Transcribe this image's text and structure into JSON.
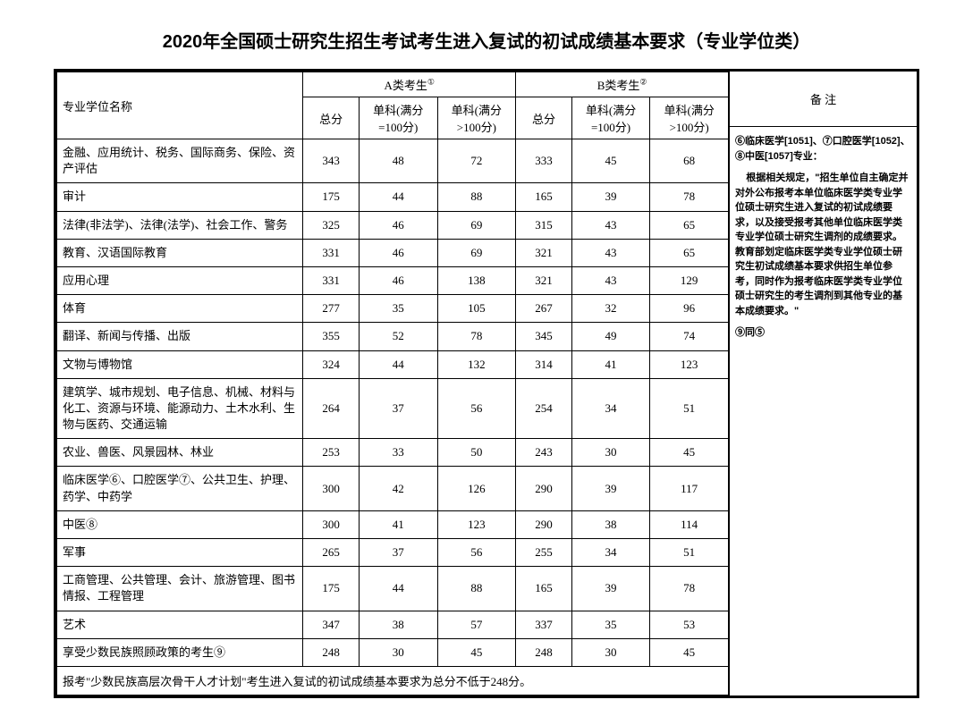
{
  "title": "2020年全国硕士研究生招生考试考生进入复试的初试成绩基本要求（专业学位类）",
  "headers": {
    "name": "专业学位名称",
    "groupA": "A类考生",
    "groupB": "B类考生",
    "supA": "①",
    "supB": "②",
    "total": "总分",
    "sub100": "单科(满分=100分)",
    "subOver100": "单科(满分>100分)",
    "notes": "备 注"
  },
  "rows": [
    {
      "name": "金融、应用统计、税务、国际商务、保险、资产评估",
      "a": [
        343,
        48,
        72
      ],
      "b": [
        333,
        45,
        68
      ]
    },
    {
      "name": "审计",
      "a": [
        175,
        44,
        88
      ],
      "b": [
        165,
        39,
        78
      ]
    },
    {
      "name": "法律(非法学)、法律(法学)、社会工作、警务",
      "a": [
        325,
        46,
        69
      ],
      "b": [
        315,
        43,
        65
      ]
    },
    {
      "name": "教育、汉语国际教育",
      "a": [
        331,
        46,
        69
      ],
      "b": [
        321,
        43,
        65
      ]
    },
    {
      "name": "应用心理",
      "a": [
        331,
        46,
        138
      ],
      "b": [
        321,
        43,
        129
      ]
    },
    {
      "name": "体育",
      "a": [
        277,
        35,
        105
      ],
      "b": [
        267,
        32,
        96
      ]
    },
    {
      "name": "翻译、新闻与传播、出版",
      "a": [
        355,
        52,
        78
      ],
      "b": [
        345,
        49,
        74
      ]
    },
    {
      "name": "文物与博物馆",
      "a": [
        324,
        44,
        132
      ],
      "b": [
        314,
        41,
        123
      ]
    },
    {
      "name": "建筑学、城市规划、电子信息、机械、材料与化工、资源与环境、能源动力、土木水利、生物与医药、交通运输",
      "a": [
        264,
        37,
        56
      ],
      "b": [
        254,
        34,
        51
      ]
    },
    {
      "name": "农业、兽医、风景园林、林业",
      "a": [
        253,
        33,
        50
      ],
      "b": [
        243,
        30,
        45
      ]
    },
    {
      "name": "临床医学⑥、口腔医学⑦、公共卫生、护理、药学、中药学",
      "a": [
        300,
        42,
        126
      ],
      "b": [
        290,
        39,
        117
      ]
    },
    {
      "name": "中医⑧",
      "a": [
        300,
        41,
        123
      ],
      "b": [
        290,
        38,
        114
      ]
    },
    {
      "name": "军事",
      "a": [
        265,
        37,
        56
      ],
      "b": [
        255,
        34,
        51
      ]
    },
    {
      "name": "工商管理、公共管理、会计、旅游管理、图书情报、工程管理",
      "a": [
        175,
        44,
        88
      ],
      "b": [
        165,
        39,
        78
      ]
    },
    {
      "name": "艺术",
      "a": [
        347,
        38,
        57
      ],
      "b": [
        337,
        35,
        53
      ]
    },
    {
      "name": "享受少数民族照顾政策的考生⑨",
      "a": [
        248,
        30,
        45
      ],
      "b": [
        248,
        30,
        45
      ]
    }
  ],
  "footer": "报考\"少数民族高层次骨干人才计划\"考生进入复试的初试成绩基本要求为总分不低于248分。",
  "notes": {
    "line1": "⑥临床医学[1051]、⑦口腔医学[1052]、⑧中医[1057]专业：",
    "line2": "根据相关规定，\"招生单位自主确定并对外公布报考本单位临床医学类专业学位硕士研究生进入复试的初试成绩要求，以及接受报考其他单位临床医学类专业学位硕士研究生调剂的成绩要求。教育部划定临床医学类专业学位硕士研究生初试成绩基本要求供招生单位参考，同时作为报考临床医学类专业学位硕士研究生的考生调剂到其他专业的基本成绩要求。\"",
    "line3": "⑨同⑤"
  },
  "style": {
    "font_body": "SimSun",
    "font_title": "SimHei",
    "title_fontsize": 20,
    "cell_fontsize": 13,
    "notes_fontsize": 11,
    "border_color": "#000000",
    "background_color": "#ffffff",
    "outer_border_width": 3,
    "inner_border_width": 1,
    "col_name_width": 220,
    "col_score_width": 50,
    "col_sub_width": 70,
    "notes_width": 210
  }
}
